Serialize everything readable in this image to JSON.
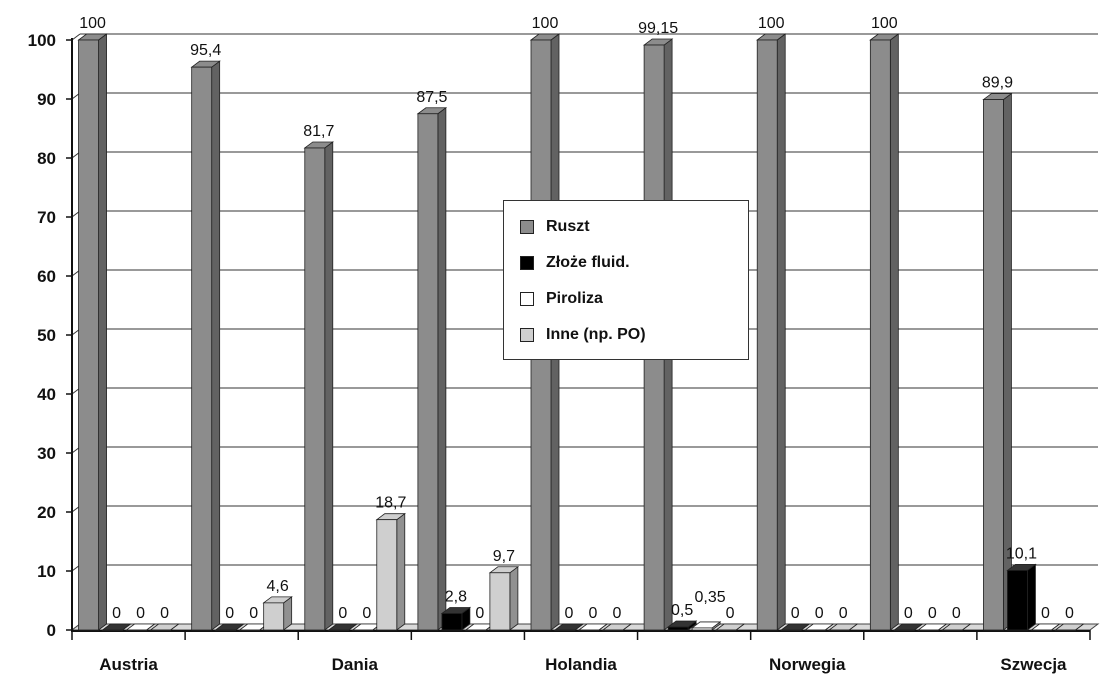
{
  "chart_data": {
    "type": "bar",
    "categories": [
      "Austria",
      "",
      "Dania",
      "",
      "Holandia",
      "",
      "Norwegia",
      "",
      "Szwecja"
    ],
    "ylim": [
      0,
      100
    ],
    "yticks": [
      0,
      10,
      20,
      30,
      40,
      50,
      60,
      70,
      80,
      90,
      100
    ],
    "grid": true,
    "legend_position": "center",
    "series": [
      {
        "name": "Ruszt",
        "color": "#8c8c8c",
        "values": [
          100,
          95.4,
          81.7,
          87.5,
          100,
          99.15,
          100,
          100,
          89.9
        ],
        "labels": [
          "100",
          "95,4",
          "81,7",
          "87,5",
          "100",
          "99,15",
          "100",
          "100",
          "89,9"
        ]
      },
      {
        "name": "Złoże fluid.",
        "color": "#000000",
        "values": [
          0,
          0,
          0,
          2.8,
          0,
          0.5,
          0,
          0,
          10.1
        ],
        "labels": [
          "0",
          "0",
          "0",
          "2,8",
          "0",
          "0,5",
          "0",
          "0",
          "10,1"
        ]
      },
      {
        "name": "Piroliza",
        "color": "#ffffff",
        "values": [
          0,
          0,
          0,
          0,
          0,
          0.35,
          0,
          0,
          0
        ],
        "labels": [
          "0",
          "0",
          "0",
          "0",
          "0",
          "0,35",
          "0",
          "0",
          "0"
        ]
      },
      {
        "name": "Inne (np. PO)",
        "color": "#cfcfcf",
        "values": [
          0,
          4.6,
          18.7,
          9.7,
          0,
          0,
          0,
          0,
          0
        ],
        "labels": [
          "0",
          "4,6",
          "18,7",
          "9,7",
          "0",
          "0",
          "0",
          "0",
          "0"
        ]
      }
    ]
  }
}
